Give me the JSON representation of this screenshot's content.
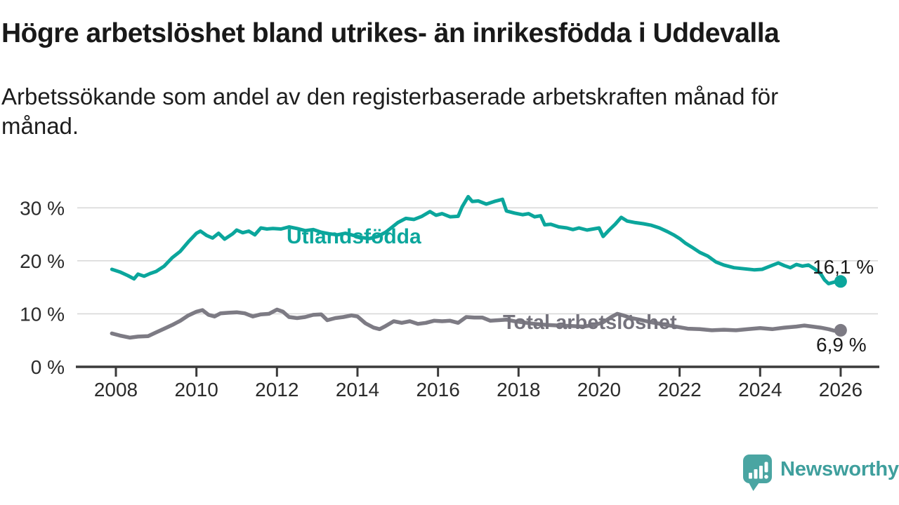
{
  "header": {
    "title": "Högre arbetslöshet bland utrikes- än inrikesfödda i Uddevalla",
    "subtitle": "Arbetssökande som andel av den registerbaserade arbetskraften månad för månad.",
    "subtitle_lines": [
      "Arbetssökande som andel av den registerbaserade arbetskraften månad för",
      "månad."
    ]
  },
  "branding": {
    "name": "Newsworthy",
    "logo_color": "#4aa5a2",
    "text_color": "#3f9f9d"
  },
  "chart_data": {
    "type": "line",
    "title": "Högre arbetslöshet bland utrikes- än inrikesfödda i Uddevalla",
    "unit": "%",
    "grid": true,
    "legend_position": "inline-labels",
    "x_axis": {
      "ticks": [
        2008,
        2010,
        2012,
        2014,
        2016,
        2018,
        2020,
        2022,
        2024,
        2026
      ],
      "range": [
        2007.0,
        2026.9
      ]
    },
    "y_axis": {
      "ticks": [
        {
          "value": 0,
          "label": "0 %"
        },
        {
          "value": 10,
          "label": "10 %"
        },
        {
          "value": 20,
          "label": "20 %"
        },
        {
          "value": 30,
          "label": "30 %"
        }
      ],
      "range": [
        0,
        34
      ]
    },
    "colors": {
      "axis": "#3a3a3a",
      "gridline": "#d9d9d9",
      "tick_text": "#2b2b2b"
    },
    "series": [
      {
        "name": "Utlandsfödda",
        "label": "Utlandsfödda",
        "color": "#0ba69c",
        "line_width": 5,
        "end_label": "16,1 %",
        "end_value": 16.1,
        "points": [
          [
            2007.9,
            18.4
          ],
          [
            2008.1,
            17.9
          ],
          [
            2008.3,
            17.2
          ],
          [
            2008.45,
            16.6
          ],
          [
            2008.55,
            17.5
          ],
          [
            2008.7,
            17.1
          ],
          [
            2008.85,
            17.6
          ],
          [
            2009.0,
            18.0
          ],
          [
            2009.2,
            19.0
          ],
          [
            2009.4,
            20.6
          ],
          [
            2009.6,
            21.8
          ],
          [
            2009.8,
            23.6
          ],
          [
            2010.0,
            25.2
          ],
          [
            2010.1,
            25.6
          ],
          [
            2010.25,
            24.8
          ],
          [
            2010.4,
            24.3
          ],
          [
            2010.55,
            25.2
          ],
          [
            2010.7,
            24.1
          ],
          [
            2010.9,
            25.1
          ],
          [
            2011.0,
            25.8
          ],
          [
            2011.15,
            25.3
          ],
          [
            2011.3,
            25.6
          ],
          [
            2011.45,
            24.9
          ],
          [
            2011.6,
            26.2
          ],
          [
            2011.75,
            26.0
          ],
          [
            2011.9,
            26.1
          ],
          [
            2012.1,
            26.0
          ],
          [
            2012.3,
            26.4
          ],
          [
            2012.5,
            26.1
          ],
          [
            2012.7,
            25.7
          ],
          [
            2012.9,
            25.9
          ],
          [
            2013.1,
            25.4
          ],
          [
            2013.3,
            25.1
          ],
          [
            2013.5,
            24.9
          ],
          [
            2013.7,
            25.2
          ],
          [
            2013.9,
            24.8
          ],
          [
            2014.1,
            24.4
          ],
          [
            2014.3,
            24.2
          ],
          [
            2014.5,
            24.6
          ],
          [
            2014.7,
            25.4
          ],
          [
            2014.85,
            26.3
          ],
          [
            2015.0,
            27.2
          ],
          [
            2015.2,
            28.0
          ],
          [
            2015.4,
            27.8
          ],
          [
            2015.6,
            28.4
          ],
          [
            2015.8,
            29.3
          ],
          [
            2015.95,
            28.6
          ],
          [
            2016.1,
            28.9
          ],
          [
            2016.3,
            28.3
          ],
          [
            2016.5,
            28.4
          ],
          [
            2016.6,
            30.2
          ],
          [
            2016.75,
            32.1
          ],
          [
            2016.85,
            31.2
          ],
          [
            2017.0,
            31.3
          ],
          [
            2017.2,
            30.7
          ],
          [
            2017.4,
            31.2
          ],
          [
            2017.6,
            31.6
          ],
          [
            2017.7,
            29.4
          ],
          [
            2017.9,
            29.0
          ],
          [
            2018.1,
            28.7
          ],
          [
            2018.25,
            28.9
          ],
          [
            2018.4,
            28.3
          ],
          [
            2018.55,
            28.5
          ],
          [
            2018.65,
            26.8
          ],
          [
            2018.8,
            26.9
          ],
          [
            2019.0,
            26.4
          ],
          [
            2019.2,
            26.2
          ],
          [
            2019.35,
            25.9
          ],
          [
            2019.5,
            26.2
          ],
          [
            2019.7,
            25.8
          ],
          [
            2019.85,
            26.0
          ],
          [
            2020.0,
            26.2
          ],
          [
            2020.1,
            24.6
          ],
          [
            2020.25,
            25.8
          ],
          [
            2020.4,
            26.9
          ],
          [
            2020.55,
            28.2
          ],
          [
            2020.7,
            27.5
          ],
          [
            2020.9,
            27.2
          ],
          [
            2021.1,
            27.0
          ],
          [
            2021.3,
            26.7
          ],
          [
            2021.5,
            26.2
          ],
          [
            2021.7,
            25.5
          ],
          [
            2021.85,
            24.9
          ],
          [
            2022.0,
            24.2
          ],
          [
            2022.15,
            23.3
          ],
          [
            2022.3,
            22.6
          ],
          [
            2022.5,
            21.6
          ],
          [
            2022.7,
            20.9
          ],
          [
            2022.9,
            19.8
          ],
          [
            2023.1,
            19.2
          ],
          [
            2023.35,
            18.7
          ],
          [
            2023.6,
            18.5
          ],
          [
            2023.85,
            18.3
          ],
          [
            2024.05,
            18.4
          ],
          [
            2024.25,
            19.0
          ],
          [
            2024.45,
            19.6
          ],
          [
            2024.6,
            19.1
          ],
          [
            2024.75,
            18.7
          ],
          [
            2024.9,
            19.3
          ],
          [
            2025.05,
            19.0
          ],
          [
            2025.2,
            19.2
          ],
          [
            2025.35,
            18.5
          ],
          [
            2025.5,
            17.6
          ],
          [
            2025.6,
            16.4
          ],
          [
            2025.7,
            15.7
          ],
          [
            2025.85,
            16.0
          ],
          [
            2026.0,
            16.1
          ]
        ]
      },
      {
        "name": "Total arbetslöshet",
        "label": "Total arbetslöshet",
        "color": "#7d7b84",
        "line_width": 5.5,
        "end_label": "6,9 %",
        "end_value": 6.9,
        "points": [
          [
            2007.9,
            6.3
          ],
          [
            2008.1,
            5.9
          ],
          [
            2008.35,
            5.5
          ],
          [
            2008.55,
            5.7
          ],
          [
            2008.8,
            5.8
          ],
          [
            2009.0,
            6.5
          ],
          [
            2009.2,
            7.2
          ],
          [
            2009.4,
            7.9
          ],
          [
            2009.6,
            8.7
          ],
          [
            2009.8,
            9.7
          ],
          [
            2010.0,
            10.4
          ],
          [
            2010.15,
            10.7
          ],
          [
            2010.3,
            9.8
          ],
          [
            2010.45,
            9.5
          ],
          [
            2010.6,
            10.1
          ],
          [
            2010.8,
            10.2
          ],
          [
            2011.0,
            10.3
          ],
          [
            2011.2,
            10.1
          ],
          [
            2011.4,
            9.5
          ],
          [
            2011.6,
            9.9
          ],
          [
            2011.8,
            10.0
          ],
          [
            2012.0,
            10.8
          ],
          [
            2012.15,
            10.4
          ],
          [
            2012.3,
            9.4
          ],
          [
            2012.5,
            9.2
          ],
          [
            2012.7,
            9.4
          ],
          [
            2012.9,
            9.8
          ],
          [
            2013.1,
            9.9
          ],
          [
            2013.25,
            8.8
          ],
          [
            2013.45,
            9.2
          ],
          [
            2013.65,
            9.4
          ],
          [
            2013.85,
            9.7
          ],
          [
            2014.0,
            9.5
          ],
          [
            2014.2,
            8.2
          ],
          [
            2014.4,
            7.4
          ],
          [
            2014.55,
            7.1
          ],
          [
            2014.7,
            7.7
          ],
          [
            2014.9,
            8.6
          ],
          [
            2015.1,
            8.3
          ],
          [
            2015.3,
            8.6
          ],
          [
            2015.5,
            8.1
          ],
          [
            2015.7,
            8.3
          ],
          [
            2015.9,
            8.7
          ],
          [
            2016.1,
            8.6
          ],
          [
            2016.3,
            8.7
          ],
          [
            2016.5,
            8.3
          ],
          [
            2016.7,
            9.4
          ],
          [
            2016.9,
            9.3
          ],
          [
            2017.1,
            9.3
          ],
          [
            2017.3,
            8.7
          ],
          [
            2017.5,
            8.8
          ],
          [
            2017.7,
            8.9
          ],
          [
            2017.9,
            8.6
          ],
          [
            2018.1,
            8.4
          ],
          [
            2018.4,
            8.1
          ],
          [
            2018.7,
            7.9
          ],
          [
            2019.0,
            7.8
          ],
          [
            2019.3,
            7.7
          ],
          [
            2019.6,
            7.6
          ],
          [
            2019.9,
            7.9
          ],
          [
            2020.1,
            8.4
          ],
          [
            2020.3,
            9.4
          ],
          [
            2020.45,
            10.0
          ],
          [
            2020.6,
            9.7
          ],
          [
            2020.8,
            9.2
          ],
          [
            2021.0,
            8.9
          ],
          [
            2021.3,
            8.4
          ],
          [
            2021.6,
            8.0
          ],
          [
            2021.9,
            7.6
          ],
          [
            2022.2,
            7.2
          ],
          [
            2022.5,
            7.1
          ],
          [
            2022.8,
            6.9
          ],
          [
            2023.1,
            7.0
          ],
          [
            2023.4,
            6.9
          ],
          [
            2023.7,
            7.1
          ],
          [
            2024.0,
            7.3
          ],
          [
            2024.3,
            7.1
          ],
          [
            2024.6,
            7.4
          ],
          [
            2024.9,
            7.6
          ],
          [
            2025.1,
            7.8
          ],
          [
            2025.3,
            7.6
          ],
          [
            2025.5,
            7.4
          ],
          [
            2025.7,
            7.1
          ],
          [
            2025.85,
            6.8
          ],
          [
            2026.0,
            6.9
          ]
        ]
      }
    ]
  }
}
